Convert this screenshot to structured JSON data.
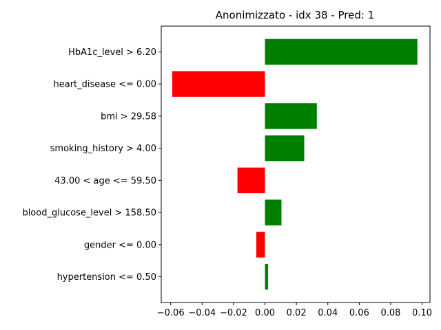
{
  "chart_data": {
    "type": "bar",
    "orientation": "horizontal",
    "title": "Anonimizzato - idx 38 - Pred: 1",
    "xlabel": "",
    "ylabel": "",
    "xlim": [
      -0.066,
      0.105
    ],
    "xticks": [
      -0.06,
      -0.04,
      -0.02,
      0.0,
      0.02,
      0.04,
      0.06,
      0.08,
      0.1
    ],
    "xtick_labels": [
      "−0.06",
      "−0.04",
      "−0.02",
      "0.00",
      "0.02",
      "0.04",
      "0.06",
      "0.08",
      "0.10"
    ],
    "categories": [
      "HbA1c_level > 6.20",
      "heart_disease <= 0.00",
      "bmi > 29.58",
      "smoking_history > 4.00",
      "43.00 < age <= 59.50",
      "blood_glucose_level > 158.50",
      "gender <= 0.00",
      "hypertension <= 0.50"
    ],
    "values": [
      0.097,
      -0.059,
      0.033,
      0.025,
      -0.0175,
      0.0105,
      -0.0055,
      0.002
    ],
    "colors": {
      "positive": "#008000",
      "negative": "#ff0000",
      "axis": "#000000",
      "background": "#ffffff"
    }
  }
}
